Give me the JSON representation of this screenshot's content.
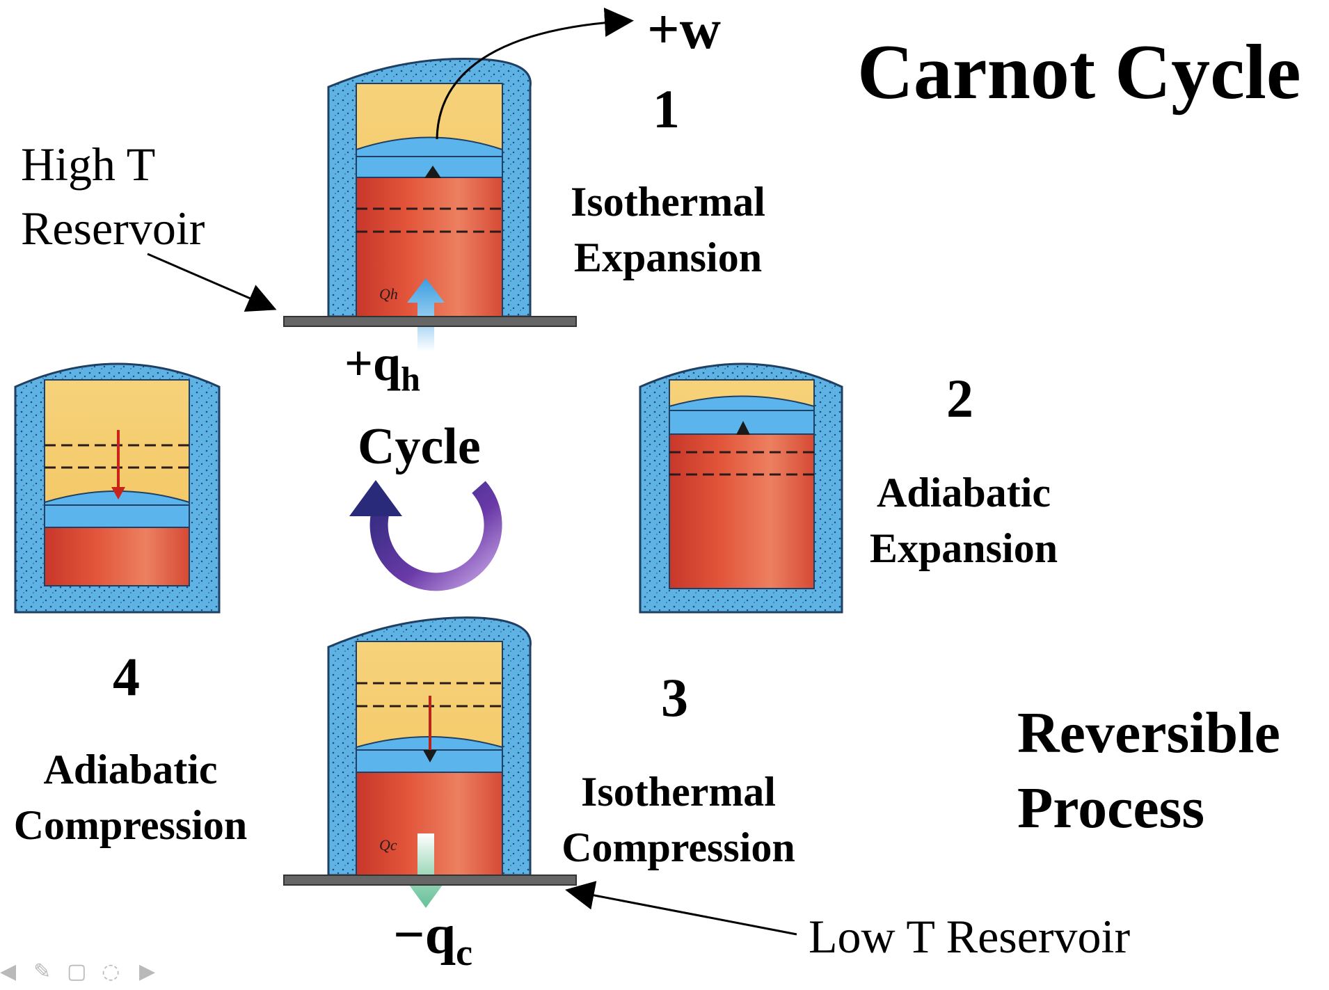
{
  "title": "Carnot Cycle",
  "work_label": "+w",
  "heat_in_label": "+q",
  "heat_in_sub": "h",
  "heat_out_label": "−q",
  "heat_out_sub": "c",
  "cycle_label": "Cycle",
  "high_reservoir": {
    "line1": "High T",
    "line2": "Reservoir"
  },
  "low_reservoir": "Low T Reservoir",
  "process": {
    "line1": "Reversible",
    "line2": "Process"
  },
  "steps": [
    {
      "number": "1",
      "line1": "Isothermal",
      "line2": "Expansion"
    },
    {
      "number": "2",
      "line1": "Adiabatic",
      "line2": "Expansion"
    },
    {
      "number": "3",
      "line1": "Isothermal",
      "line2": "Compression"
    },
    {
      "number": "4",
      "line1": "Adiabatic",
      "line2": "Compression"
    }
  ],
  "cylinder_heat_labels": {
    "top": "Qh",
    "bottom": "Qc"
  },
  "colors": {
    "insulation": "#5fb3e4",
    "insulation_dots": "#1b4f7a",
    "gas_hot": "#dd4a2e",
    "gas_cool": "#f4c866",
    "piston": "#5bb5ec",
    "heat_in_arrow": "#58aee6",
    "heat_out_arrow": "#7fcaa4",
    "cycle_arrow": "#4a2d8c",
    "reservoir": "#555555"
  },
  "toolbar_icons": [
    "back-icon",
    "pen-icon",
    "slides-icon",
    "more-icon",
    "forward-icon"
  ]
}
